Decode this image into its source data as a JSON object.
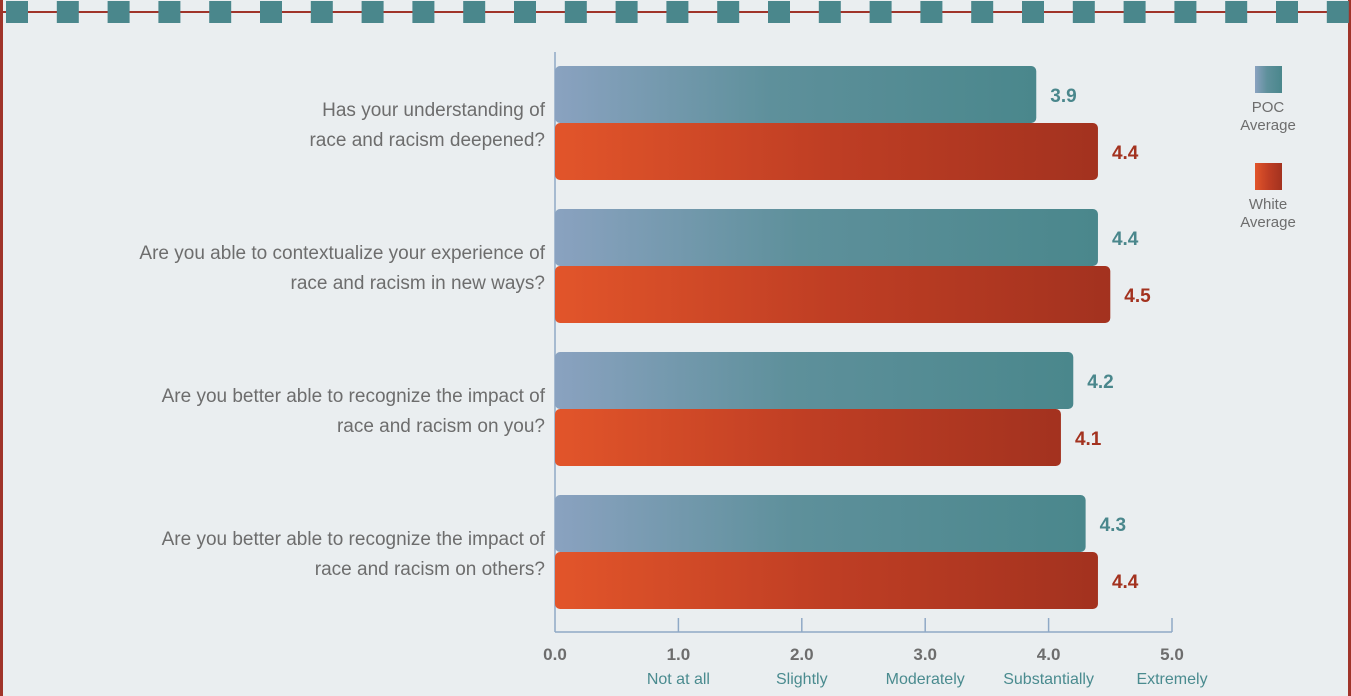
{
  "colors": {
    "poc": "#4a878c",
    "white": "#a3321f",
    "accent_border": "#a0342a",
    "axis": "#8fa9c6",
    "background": "#eaeef0"
  },
  "chart_data": {
    "type": "bar",
    "orientation": "horizontal",
    "title": "",
    "xlabel": "",
    "ylabel": "",
    "xlim": [
      0,
      5
    ],
    "grid": false,
    "legend_position": "top-right",
    "categories": [
      [
        "Has your understanding of",
        "race and racism deepened?"
      ],
      [
        "Are you able to contextualize your experience of",
        "race and racism in new ways?"
      ],
      [
        "Are you better able to recognize the impact of",
        "race and racism on you?"
      ],
      [
        "Are you better able to recognize the impact of",
        "race and racism on others?"
      ]
    ],
    "series": [
      {
        "name": [
          "POC",
          "Average"
        ],
        "values": [
          3.9,
          4.4,
          4.2,
          4.3
        ],
        "labels": [
          "3.9",
          "4.4",
          "4.2",
          "4.3"
        ]
      },
      {
        "name": [
          "White",
          "Average"
        ],
        "values": [
          4.4,
          4.5,
          4.1,
          4.4
        ],
        "labels": [
          "4.4",
          "4.5",
          "4.1",
          "4.4"
        ]
      }
    ],
    "x_ticks": [
      {
        "value": 0,
        "label": "0.0",
        "desc": ""
      },
      {
        "value": 1,
        "label": "1.0",
        "desc": "Not at all"
      },
      {
        "value": 2,
        "label": "2.0",
        "desc": "Slightly"
      },
      {
        "value": 3,
        "label": "3.0",
        "desc": "Moderately"
      },
      {
        "value": 4,
        "label": "4.0",
        "desc": "Substantially"
      },
      {
        "value": 5,
        "label": "5.0",
        "desc": "Extremely"
      }
    ]
  }
}
